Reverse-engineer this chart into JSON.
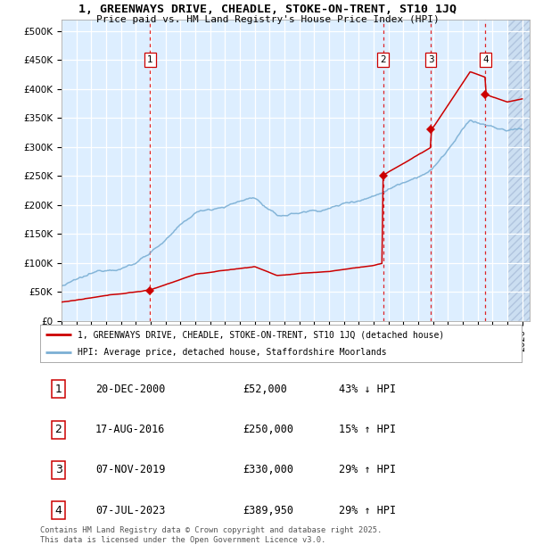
{
  "title": "1, GREENWAYS DRIVE, CHEADLE, STOKE-ON-TRENT, ST10 1JQ",
  "subtitle": "Price paid vs. HM Land Registry's House Price Index (HPI)",
  "ylim": [
    0,
    520000
  ],
  "yticks": [
    0,
    50000,
    100000,
    150000,
    200000,
    250000,
    300000,
    350000,
    400000,
    450000,
    500000
  ],
  "ytick_labels": [
    "£0",
    "£50K",
    "£100K",
    "£150K",
    "£200K",
    "£250K",
    "£300K",
    "£350K",
    "£400K",
    "£450K",
    "£500K"
  ],
  "xlim_start": 1995.0,
  "xlim_end": 2026.5,
  "background_color": "#ddeeff",
  "grid_color": "#ffffff",
  "sale_dates": [
    2000.97,
    2016.63,
    2019.85,
    2023.52
  ],
  "sale_prices": [
    52000,
    250000,
    330000,
    389950
  ],
  "sale_labels": [
    "1",
    "2",
    "3",
    "4"
  ],
  "vline_color": "#dd0000",
  "sale_color": "#cc0000",
  "hpi_color": "#7bafd4",
  "legend_entries": [
    "1, GREENWAYS DRIVE, CHEADLE, STOKE-ON-TRENT, ST10 1JQ (detached house)",
    "HPI: Average price, detached house, Staffordshire Moorlands"
  ],
  "table_rows": [
    [
      "1",
      "20-DEC-2000",
      "£52,000",
      "43% ↓ HPI"
    ],
    [
      "2",
      "17-AUG-2016",
      "£250,000",
      "15% ↑ HPI"
    ],
    [
      "3",
      "07-NOV-2019",
      "£330,000",
      "29% ↑ HPI"
    ],
    [
      "4",
      "07-JUL-2023",
      "£389,950",
      "29% ↑ HPI"
    ]
  ],
  "footer": "Contains HM Land Registry data © Crown copyright and database right 2025.\nThis data is licensed under the Open Government Licence v3.0."
}
